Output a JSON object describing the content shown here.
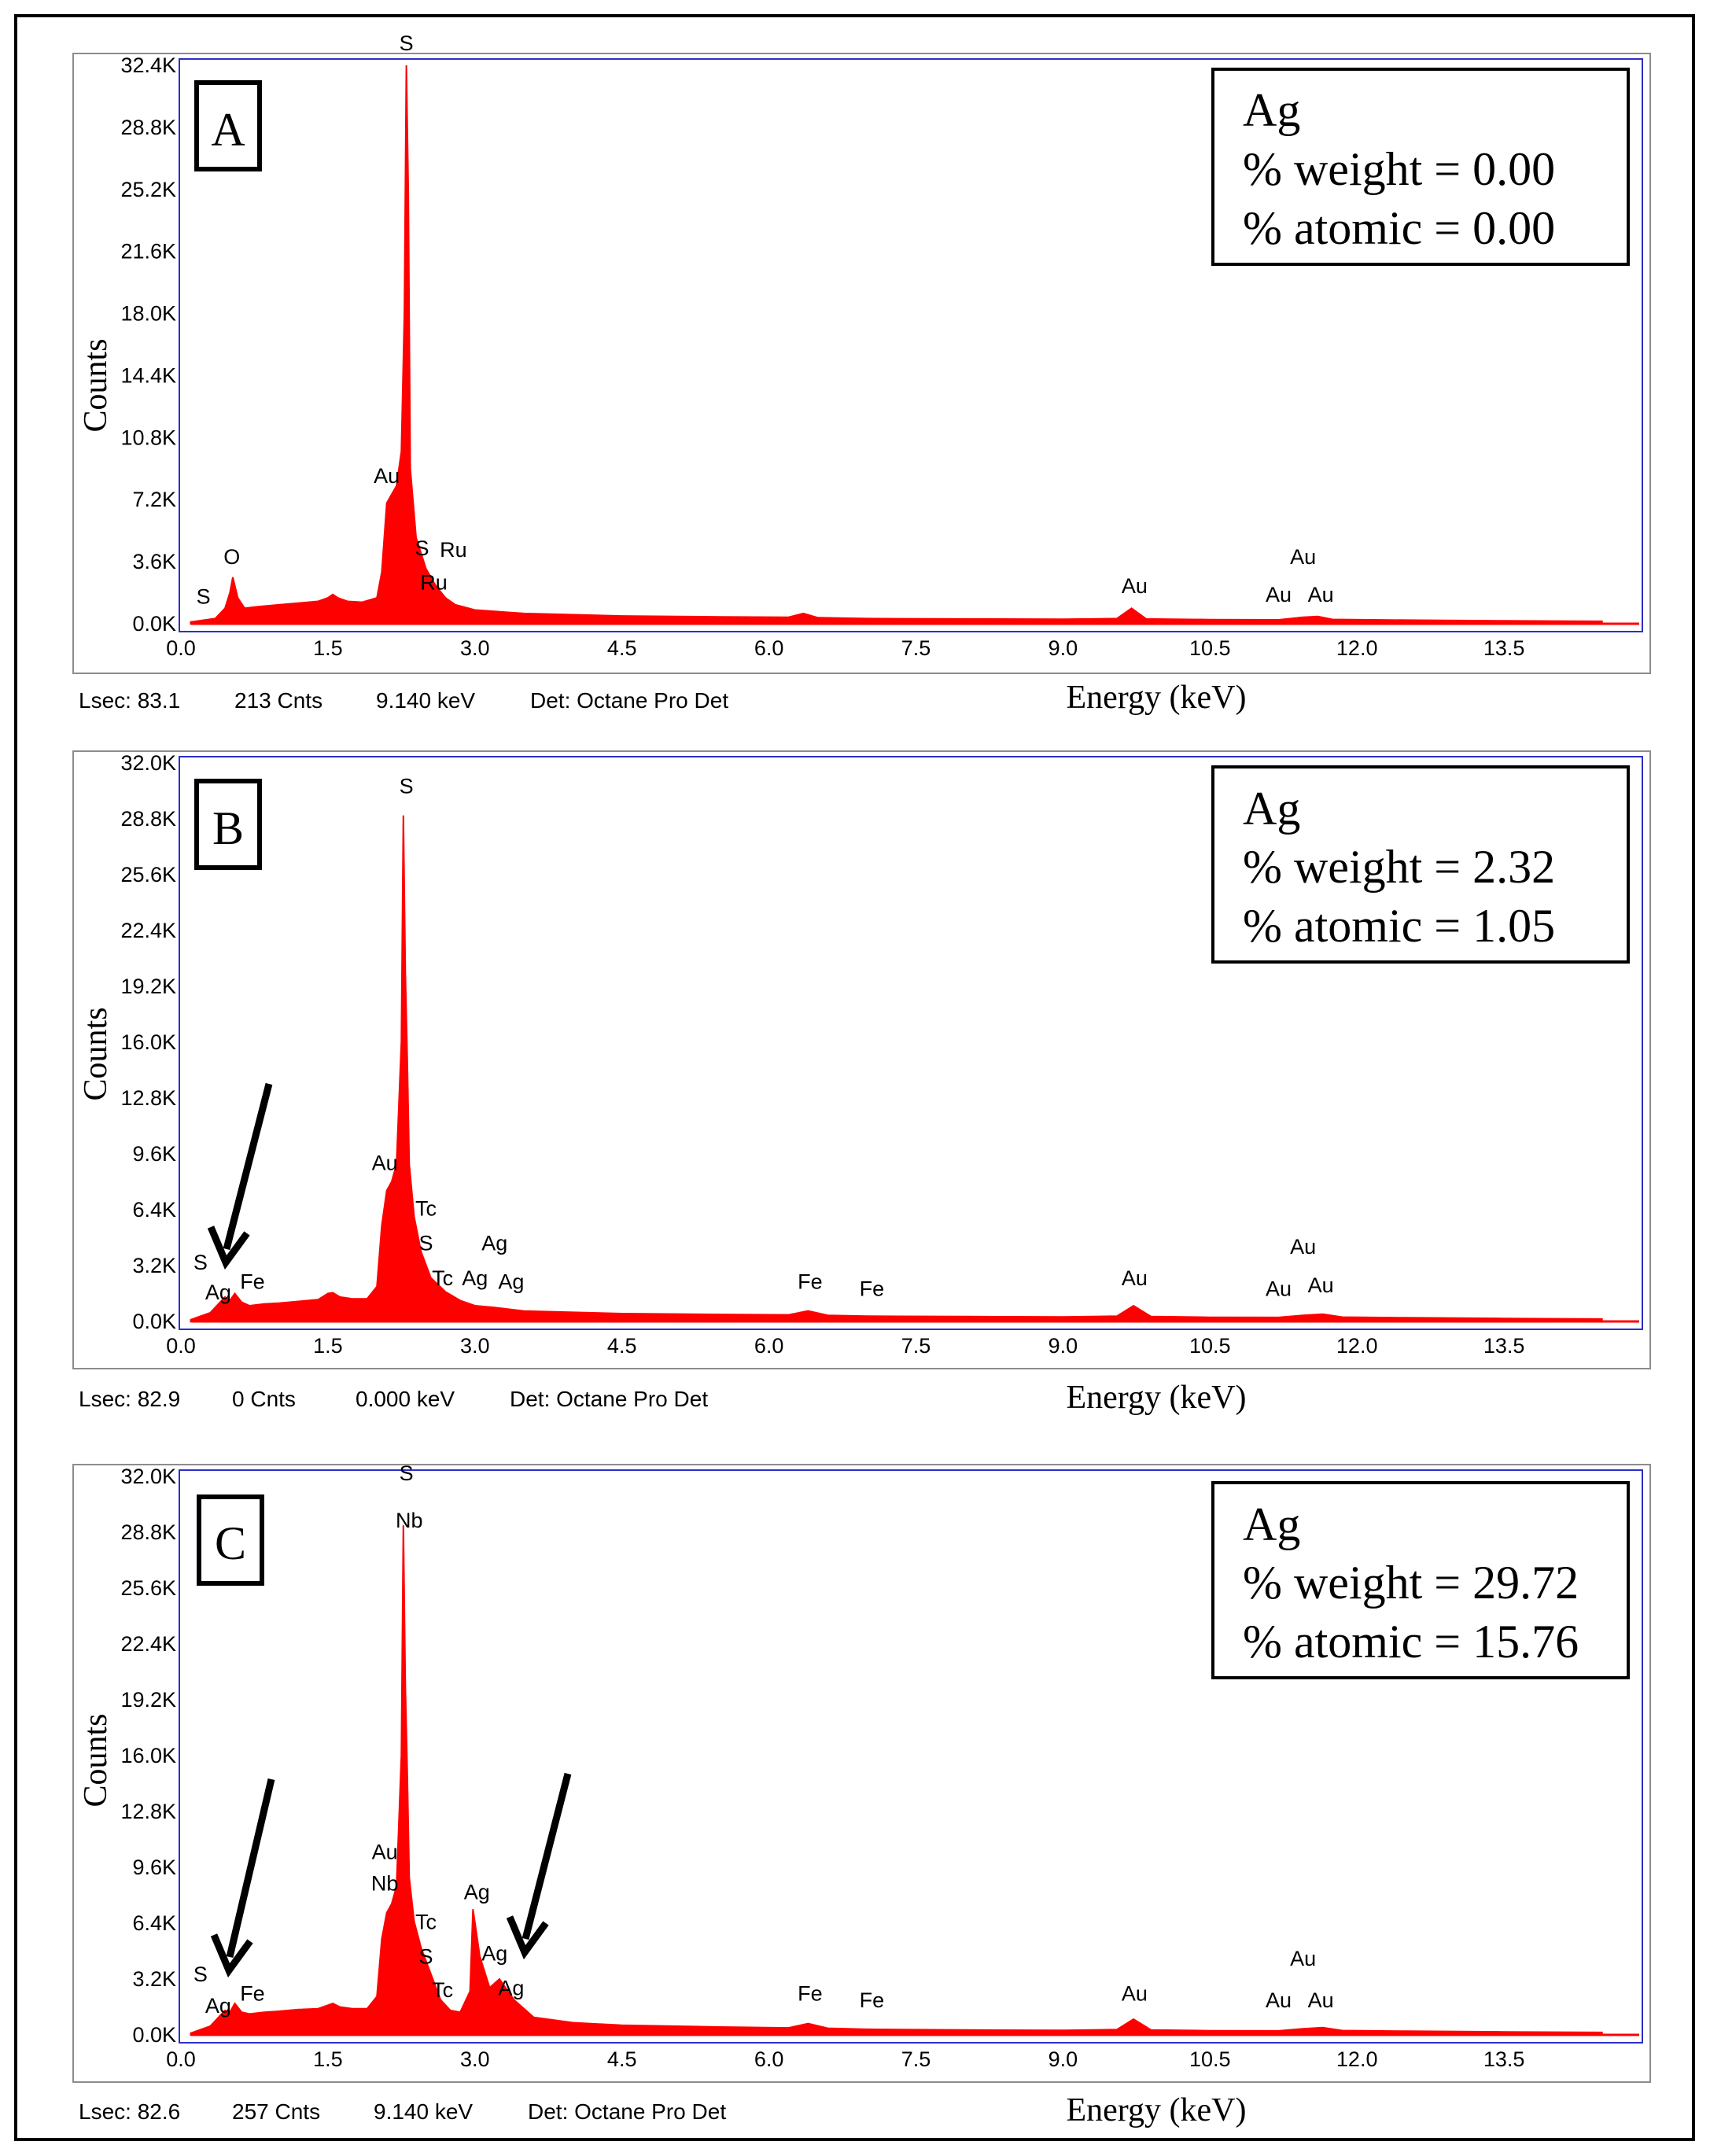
{
  "figure": {
    "panels": [
      {
        "letter": "A",
        "info": {
          "element": "Ag",
          "weight": "% weight = 0.00",
          "atomic": "% atomic = 0.00"
        },
        "footer": {
          "lsec": "Lsec: 83.1",
          "cnts": "213 Cnts",
          "kev": "9.140 keV",
          "det": "Det: Octane Pro Det"
        },
        "xlabel": "Energy (keV)",
        "ylabel": "Counts"
      },
      {
        "letter": "B",
        "info": {
          "element": "Ag",
          "weight": "% weight = 2.32",
          "atomic": "% atomic = 1.05"
        },
        "footer": {
          "lsec": "Lsec: 82.9",
          "cnts": "0 Cnts",
          "kev": "0.000 keV",
          "det": "Det: Octane Pro Det"
        },
        "xlabel": "Energy (keV)",
        "ylabel": "Counts"
      },
      {
        "letter": "C",
        "info": {
          "element": "Ag",
          "weight": "% weight = 29.72",
          "atomic": "% atomic = 15.76"
        },
        "footer": {
          "lsec": "Lsec: 82.6",
          "cnts": "257 Cnts",
          "kev": "9.140 keV",
          "det": "Det: Octane Pro Det"
        },
        "xlabel": "Energy (keV)",
        "ylabel": "Counts"
      }
    ]
  },
  "chart_data": [
    {
      "type": "area",
      "title": "",
      "xlabel": "Energy (keV)",
      "ylabel": "Counts",
      "xlim": [
        0,
        15
      ],
      "ylim": [
        0,
        32400
      ],
      "x_ticks": [
        "0.0",
        "1.5",
        "3.0",
        "4.5",
        "6.0",
        "7.5",
        "9.0",
        "10.5",
        "12.0",
        "13.5"
      ],
      "y_ticks": [
        "0.0K",
        "3.6K",
        "7.2K",
        "10.8K",
        "14.4K",
        "18.0K",
        "21.6K",
        "25.2K",
        "28.8K",
        "32.4K"
      ],
      "series_color": "#ff0000",
      "series": [
        {
          "x": [
            0.1,
            0.35,
            0.45,
            0.5,
            0.53,
            0.58,
            0.65,
            0.8,
            1.0,
            1.2,
            1.4,
            1.5,
            1.55,
            1.6,
            1.7,
            1.85,
            2.0,
            2.05,
            2.1,
            2.15,
            2.2,
            2.25,
            2.28,
            2.3,
            2.32,
            2.34,
            2.4,
            2.5,
            2.6,
            2.7,
            2.8,
            3.0,
            3.5,
            4.5,
            5.5,
            6.2,
            6.35,
            6.5,
            7.0,
            8.0,
            9.0,
            9.55,
            9.7,
            9.85,
            10.5,
            11.2,
            11.45,
            11.6,
            11.75,
            12.5,
            13.5,
            14.5
          ],
          "y": [
            100,
            300,
            900,
            1800,
            2700,
            1500,
            900,
            1000,
            1100,
            1200,
            1300,
            1500,
            1700,
            1500,
            1300,
            1250,
            1500,
            3000,
            7000,
            7500,
            8000,
            10000,
            18000,
            32400,
            25000,
            9000,
            5000,
            3200,
            2200,
            1500,
            1100,
            800,
            600,
            450,
            400,
            380,
            600,
            350,
            300,
            280,
            260,
            300,
            900,
            280,
            240,
            230,
            380,
            420,
            250,
            210,
            170,
            140
          ]
        }
      ],
      "peak_labels": [
        {
          "text": "S",
          "x": 0.23,
          "y": 900
        },
        {
          "text": "O",
          "x": 0.52,
          "y": 3200
        },
        {
          "text": "Au",
          "x": 2.1,
          "y": 7900
        },
        {
          "text": "S",
          "x": 2.3,
          "y": 33000
        },
        {
          "text": "S",
          "x": 2.46,
          "y": 3700
        },
        {
          "text": "Ru",
          "x": 2.78,
          "y": 3600
        },
        {
          "text": "Ru",
          "x": 2.58,
          "y": 1700
        },
        {
          "text": "Au",
          "x": 9.73,
          "y": 1500
        },
        {
          "text": "Au",
          "x": 11.45,
          "y": 3200
        },
        {
          "text": "Au",
          "x": 11.2,
          "y": 1000
        },
        {
          "text": "Au",
          "x": 11.63,
          "y": 1000
        }
      ]
    },
    {
      "type": "area",
      "title": "",
      "xlabel": "Energy (keV)",
      "ylabel": "Counts",
      "xlim": [
        0,
        15
      ],
      "ylim": [
        0,
        32000
      ],
      "x_ticks": [
        "0.0",
        "1.5",
        "3.0",
        "4.5",
        "6.0",
        "7.5",
        "9.0",
        "10.5",
        "12.0",
        "13.5"
      ],
      "y_ticks": [
        "0.0K",
        "3.2K",
        "6.4K",
        "9.6K",
        "12.8K",
        "16.0K",
        "19.2K",
        "22.4K",
        "25.6K",
        "28.8K",
        "32.0K"
      ],
      "series_color": "#ff0000",
      "series": [
        {
          "x": [
            0.1,
            0.3,
            0.4,
            0.45,
            0.5,
            0.55,
            0.62,
            0.7,
            0.85,
            1.0,
            1.2,
            1.4,
            1.5,
            1.55,
            1.62,
            1.75,
            1.9,
            2.0,
            2.05,
            2.1,
            2.15,
            2.2,
            2.25,
            2.27,
            2.29,
            2.31,
            2.33,
            2.38,
            2.45,
            2.55,
            2.7,
            2.85,
            3.0,
            3.2,
            3.5,
            4.5,
            5.5,
            6.2,
            6.4,
            6.6,
            7.0,
            8.0,
            9.0,
            9.55,
            9.72,
            9.9,
            10.5,
            11.2,
            11.45,
            11.65,
            11.85,
            12.5,
            13.5,
            14.5
          ],
          "y": [
            100,
            500,
            1100,
            1400,
            1200,
            1600,
            1100,
            900,
            1000,
            1050,
            1150,
            1250,
            1600,
            1650,
            1400,
            1300,
            1300,
            2000,
            5500,
            7500,
            8000,
            9000,
            16000,
            29000,
            20000,
            15000,
            9000,
            6000,
            4000,
            2500,
            1700,
            1200,
            900,
            800,
            600,
            450,
            400,
            380,
            600,
            350,
            300,
            280,
            260,
            300,
            900,
            280,
            240,
            230,
            350,
            420,
            250,
            210,
            170,
            140
          ]
        }
      ],
      "peak_labels": [
        {
          "text": "S",
          "x": 0.2,
          "y": 2700
        },
        {
          "text": "Ag",
          "x": 0.38,
          "y": 1000
        },
        {
          "text": "Fe",
          "x": 0.73,
          "y": 1600
        },
        {
          "text": "Au",
          "x": 2.08,
          "y": 8400
        },
        {
          "text": "S",
          "x": 2.3,
          "y": 30000
        },
        {
          "text": "Tc",
          "x": 2.5,
          "y": 5800
        },
        {
          "text": "S",
          "x": 2.5,
          "y": 3800
        },
        {
          "text": "Tc",
          "x": 2.67,
          "y": 1800
        },
        {
          "text": "Ag",
          "x": 3.0,
          "y": 1800
        },
        {
          "text": "Ag",
          "x": 3.2,
          "y": 3800
        },
        {
          "text": "Ag",
          "x": 3.37,
          "y": 1600
        },
        {
          "text": "Fe",
          "x": 6.42,
          "y": 1600
        },
        {
          "text": "Fe",
          "x": 7.05,
          "y": 1200
        },
        {
          "text": "Au",
          "x": 9.73,
          "y": 1800
        },
        {
          "text": "Au",
          "x": 11.45,
          "y": 3600
        },
        {
          "text": "Au",
          "x": 11.2,
          "y": 1200
        },
        {
          "text": "Au",
          "x": 11.63,
          "y": 1400
        }
      ]
    },
    {
      "type": "area",
      "title": "",
      "xlabel": "Energy (keV)",
      "ylabel": "Counts",
      "xlim": [
        0,
        15
      ],
      "ylim": [
        0,
        32000
      ],
      "x_ticks": [
        "0.0",
        "1.5",
        "3.0",
        "4.5",
        "6.0",
        "7.5",
        "9.0",
        "10.5",
        "12.0",
        "13.5"
      ],
      "y_ticks": [
        "0.0K",
        "3.2K",
        "6.4K",
        "9.6K",
        "12.8K",
        "16.0K",
        "19.2K",
        "22.4K",
        "25.6K",
        "28.8K",
        "32.0K"
      ],
      "series_color": "#ff0000",
      "series": [
        {
          "x": [
            0.1,
            0.3,
            0.4,
            0.45,
            0.5,
            0.55,
            0.62,
            0.7,
            0.85,
            1.0,
            1.2,
            1.4,
            1.5,
            1.55,
            1.62,
            1.75,
            1.9,
            2.0,
            2.05,
            2.1,
            2.15,
            2.2,
            2.25,
            2.27,
            2.29,
            2.31,
            2.33,
            2.38,
            2.45,
            2.55,
            2.65,
            2.75,
            2.85,
            2.95,
            2.98,
            3.05,
            3.15,
            3.25,
            3.4,
            3.6,
            4.0,
            4.5,
            5.5,
            6.2,
            6.4,
            6.6,
            7.0,
            8.0,
            9.0,
            9.55,
            9.72,
            9.9,
            10.5,
            11.2,
            11.45,
            11.65,
            11.85,
            12.5,
            13.5,
            14.5
          ],
          "y": [
            100,
            500,
            1100,
            1400,
            1300,
            1800,
            1300,
            1200,
            1300,
            1350,
            1450,
            1500,
            1700,
            1800,
            1600,
            1500,
            1500,
            2200,
            5500,
            7000,
            7500,
            8500,
            16000,
            29200,
            20000,
            15000,
            9000,
            6500,
            5000,
            3500,
            2000,
            1400,
            1300,
            2500,
            7200,
            4500,
            2700,
            3200,
            2000,
            1000,
            700,
            550,
            450,
            400,
            650,
            380,
            320,
            280,
            260,
            300,
            900,
            280,
            240,
            230,
            350,
            420,
            250,
            210,
            170,
            140
          ]
        }
      ],
      "peak_labels": [
        {
          "text": "S",
          "x": 0.2,
          "y": 2800
        },
        {
          "text": "Ag",
          "x": 0.38,
          "y": 1000
        },
        {
          "text": "Fe",
          "x": 0.73,
          "y": 1700
        },
        {
          "text": "S",
          "x": 2.3,
          "y": 31500
        },
        {
          "text": "Nb",
          "x": 2.33,
          "y": 28800
        },
        {
          "text": "Au",
          "x": 2.08,
          "y": 9800
        },
        {
          "text": "Nb",
          "x": 2.08,
          "y": 8000
        },
        {
          "text": "Tc",
          "x": 2.5,
          "y": 5800
        },
        {
          "text": "S",
          "x": 2.5,
          "y": 3800
        },
        {
          "text": "Tc",
          "x": 2.67,
          "y": 1900
        },
        {
          "text": "Ag",
          "x": 3.02,
          "y": 7500
        },
        {
          "text": "Ag",
          "x": 3.2,
          "y": 4000
        },
        {
          "text": "Ag",
          "x": 3.37,
          "y": 2000
        },
        {
          "text": "Fe",
          "x": 6.42,
          "y": 1700
        },
        {
          "text": "Fe",
          "x": 7.05,
          "y": 1300
        },
        {
          "text": "Au",
          "x": 9.73,
          "y": 1700
        },
        {
          "text": "Au",
          "x": 11.45,
          "y": 3700
        },
        {
          "text": "Au",
          "x": 11.2,
          "y": 1300
        },
        {
          "text": "Au",
          "x": 11.63,
          "y": 1300
        }
      ]
    }
  ]
}
